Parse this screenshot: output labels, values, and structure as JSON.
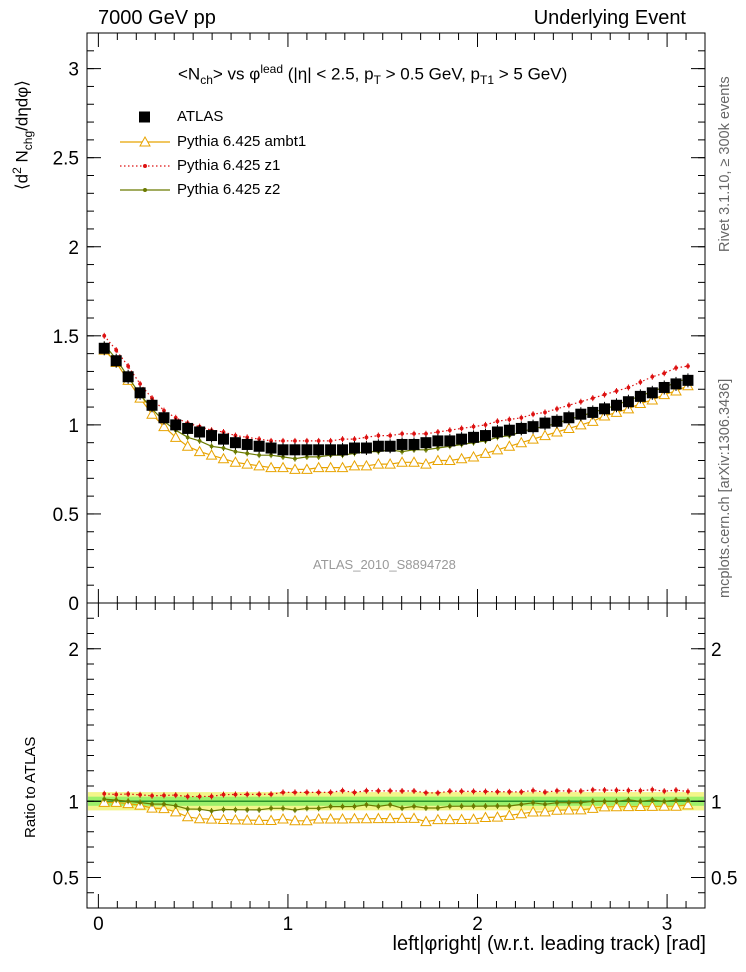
{
  "header": {
    "left": "7000 GeV pp",
    "right": "Underlying Event"
  },
  "side": {
    "rivet": "Rivet 3.1.10, ≥ 300k events",
    "mcplots": "mcplots.cern.ch [arXiv:1306.3436]"
  },
  "analysis_id": "ATLAS_2010_S8894728",
  "chart_data": {
    "type": "scatter",
    "title": {
      "main": "<N",
      "sub1": "ch",
      "mid": "> vs φ",
      "sup1": "lead",
      "cuts": " (|η| < 2.5, p",
      "sub2": "T",
      "cuts2": " > 0.5 GeV, p",
      "sub3": "T1",
      "cuts3": " > 5 GeV)"
    },
    "ylabel": "⟨d² N_chg/dηdφ⟩",
    "ylabel_parts": {
      "a": "⟨d",
      "b": "2",
      "c": " N",
      "d": "chg",
      "e": "/dηdφ⟩"
    },
    "ratio_ylabel": "Ratio to ATLAS",
    "xlabel": "left|φright| (w.r.t. leading track) [rad]",
    "xlim": [
      -0.06,
      3.2
    ],
    "ylim": [
      0,
      3.2
    ],
    "ratio_ylim": [
      0.3,
      2.3
    ],
    "x_ticks": [
      0,
      1,
      2,
      3
    ],
    "y_ticks": [
      0,
      0.5,
      1,
      1.5,
      2,
      2.5,
      3
    ],
    "y_tick_labels": [
      "0",
      "0.5",
      "1",
      "1.5",
      "2",
      "2.5",
      "3"
    ],
    "ratio_y_ticks": [
      0.5,
      1,
      2
    ],
    "ratio_y_tick_labels": [
      "0.5",
      "1",
      "2"
    ],
    "x_tick_labels": [
      "0",
      "1",
      "2",
      "3"
    ],
    "legend": [
      {
        "name": "ATLAS",
        "color": "#000000",
        "marker": "square"
      },
      {
        "name": "Pythia 6.425 ambt1",
        "color": "#e8a300",
        "marker": "triangle"
      },
      {
        "name": "Pythia 6.425 z1",
        "color": "#dd1111",
        "marker": "dot-dotted"
      },
      {
        "name": "Pythia 6.425 z2",
        "color": "#6b7a00",
        "marker": "dot-solid"
      }
    ],
    "x": [
      0.031,
      0.094,
      0.157,
      0.22,
      0.283,
      0.346,
      0.408,
      0.471,
      0.534,
      0.597,
      0.66,
      0.723,
      0.785,
      0.848,
      0.911,
      0.974,
      1.037,
      1.1,
      1.162,
      1.225,
      1.288,
      1.351,
      1.414,
      1.477,
      1.539,
      1.602,
      1.665,
      1.728,
      1.791,
      1.854,
      1.916,
      1.979,
      2.042,
      2.105,
      2.168,
      2.231,
      2.293,
      2.356,
      2.419,
      2.482,
      2.545,
      2.608,
      2.67,
      2.733,
      2.796,
      2.859,
      2.922,
      2.985,
      3.047,
      3.11
    ],
    "series": [
      {
        "name": "ATLAS",
        "values": [
          1.43,
          1.36,
          1.27,
          1.18,
          1.11,
          1.04,
          1.0,
          0.98,
          0.96,
          0.94,
          0.92,
          0.9,
          0.89,
          0.88,
          0.87,
          0.86,
          0.86,
          0.86,
          0.86,
          0.86,
          0.86,
          0.87,
          0.87,
          0.88,
          0.88,
          0.89,
          0.89,
          0.9,
          0.91,
          0.91,
          0.92,
          0.93,
          0.94,
          0.96,
          0.97,
          0.98,
          0.99,
          1.01,
          1.02,
          1.04,
          1.06,
          1.07,
          1.09,
          1.11,
          1.13,
          1.16,
          1.18,
          1.21,
          1.23,
          1.25
        ]
      },
      {
        "name": "Pythia 6.425 ambt1",
        "values": [
          1.42,
          1.35,
          1.25,
          1.15,
          1.06,
          0.99,
          0.93,
          0.88,
          0.85,
          0.83,
          0.81,
          0.79,
          0.78,
          0.77,
          0.76,
          0.76,
          0.75,
          0.75,
          0.76,
          0.76,
          0.76,
          0.77,
          0.77,
          0.78,
          0.78,
          0.79,
          0.79,
          0.78,
          0.8,
          0.8,
          0.81,
          0.82,
          0.84,
          0.86,
          0.88,
          0.9,
          0.92,
          0.94,
          0.96,
          0.98,
          1.0,
          1.02,
          1.05,
          1.07,
          1.09,
          1.12,
          1.14,
          1.17,
          1.19,
          1.22
        ]
      },
      {
        "name": "Pythia 6.425 z1",
        "values": [
          1.5,
          1.42,
          1.33,
          1.23,
          1.15,
          1.08,
          1.04,
          1.01,
          0.99,
          0.97,
          0.96,
          0.94,
          0.93,
          0.92,
          0.91,
          0.91,
          0.91,
          0.91,
          0.91,
          0.91,
          0.92,
          0.92,
          0.93,
          0.94,
          0.94,
          0.95,
          0.95,
          0.95,
          0.96,
          0.97,
          0.98,
          0.99,
          1.0,
          1.02,
          1.03,
          1.04,
          1.06,
          1.07,
          1.09,
          1.11,
          1.13,
          1.15,
          1.17,
          1.19,
          1.21,
          1.24,
          1.27,
          1.29,
          1.32,
          1.33
        ]
      },
      {
        "name": "Pythia 6.425 z2",
        "values": [
          1.45,
          1.37,
          1.27,
          1.17,
          1.09,
          1.02,
          0.97,
          0.93,
          0.91,
          0.88,
          0.87,
          0.85,
          0.84,
          0.83,
          0.83,
          0.82,
          0.81,
          0.82,
          0.82,
          0.83,
          0.83,
          0.84,
          0.85,
          0.85,
          0.86,
          0.85,
          0.86,
          0.86,
          0.87,
          0.88,
          0.89,
          0.9,
          0.91,
          0.93,
          0.94,
          0.96,
          0.98,
          0.99,
          1.01,
          1.03,
          1.05,
          1.07,
          1.09,
          1.11,
          1.14,
          1.16,
          1.19,
          1.21,
          1.24,
          1.26
        ]
      }
    ],
    "ratio_band": {
      "inner": 0.03,
      "outer": 0.06,
      "inner_color": "#9cf06a",
      "outer_color": "#f3f58a"
    }
  }
}
